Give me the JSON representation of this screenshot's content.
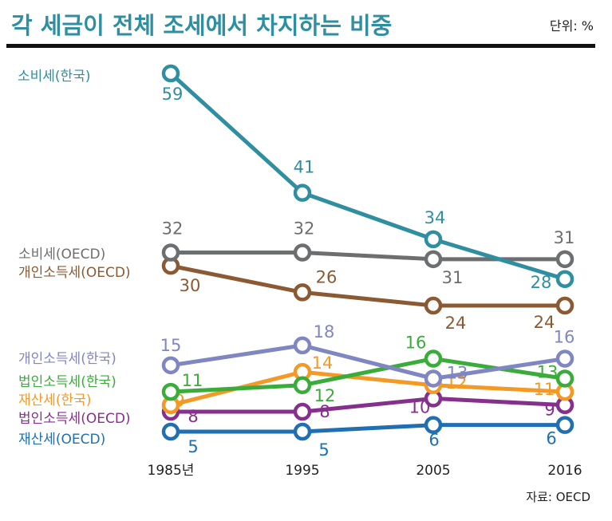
{
  "chart_data": {
    "type": "line",
    "title": "각 세금이 전체 조세에서 차지하는 비중",
    "unit_label": "단위: %",
    "source": "자료: OECD",
    "x": [
      "1985년",
      "1995",
      "2005",
      "2016"
    ],
    "ylim": [
      0,
      65
    ],
    "grid": false,
    "legend": "left-inline",
    "series": [
      {
        "name": "소비세(한국)",
        "color": "#2f8fa0",
        "values": [
          59,
          41,
          34,
          28
        ]
      },
      {
        "name": "소비세(OECD)",
        "color": "#6d6e70",
        "values": [
          32,
          32,
          31,
          31
        ]
      },
      {
        "name": "개인소득세(OECD)",
        "color": "#8b5a33",
        "values": [
          30,
          26,
          24,
          24
        ]
      },
      {
        "name": "개인소득세(한국)",
        "color": "#7f86c2",
        "values": [
          15,
          18,
          13,
          16
        ]
      },
      {
        "name": "법인소득세(한국)",
        "color": "#3aac3a",
        "values": [
          11,
          12,
          16,
          13
        ]
      },
      {
        "name": "재산세(한국)",
        "color": "#f39a26",
        "values": [
          9,
          14,
          12,
          11
        ]
      },
      {
        "name": "법인소득세(OECD)",
        "color": "#86308e",
        "values": [
          8,
          8,
          10,
          9
        ]
      },
      {
        "name": "재산세(OECD)",
        "color": "#1f6fb1",
        "values": [
          5,
          5,
          6,
          6
        ]
      }
    ]
  }
}
